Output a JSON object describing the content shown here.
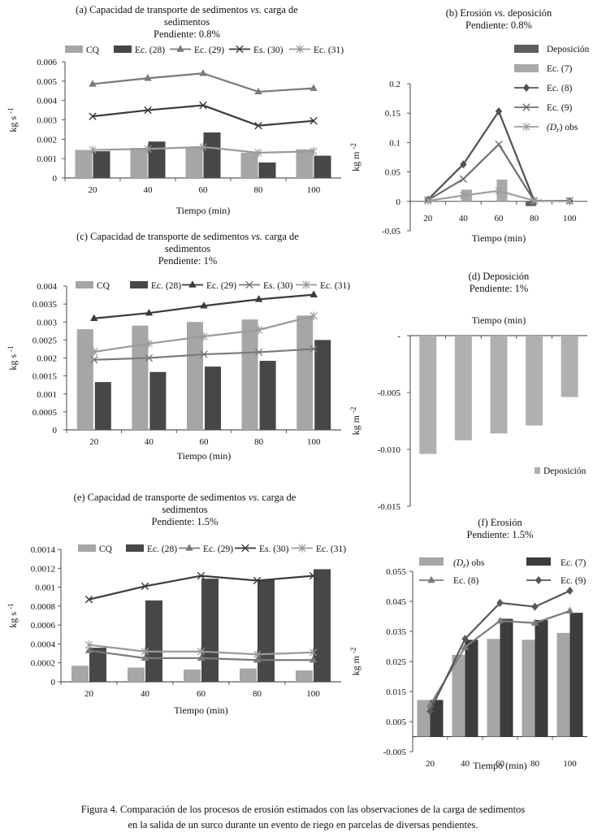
{
  "caption": {
    "line1": "Figura 4. Comparación de los procesos de erosión estimados con las observaciones de la carga de sedimentos",
    "line2": "en la salida de un surco durante un evento de riego en parcelas de diversas pendientes."
  },
  "colors": {
    "cq": "#a6a6a6",
    "ec28": "#474747",
    "ec29": "#7a7a7a",
    "es30": "#3a3a3a",
    "ec31": "#9a9a9a",
    "dep": "#5e5e5e",
    "ec7": "#a9a9a9",
    "ec8": "#505050",
    "ec9": "#6e6e6e",
    "drobs": "#9e9e9e",
    "depd": "#b0b0b0"
  },
  "chart_data": [
    {
      "id": "a",
      "type": "bar+line",
      "title": [
        "(a) Capacidad de transporte de sedimentos vs. carga de",
        "sedimentos",
        "Pendiente: 0.8%"
      ],
      "xlabel": "Tiempo (min)",
      "ylabel": "kg s-1",
      "categories": [
        "20",
        "40",
        "60",
        "80",
        "100"
      ],
      "ylim": [
        0,
        0.006
      ],
      "yticks": [
        "0",
        "0.001",
        "0.002",
        "0.003",
        "0.004",
        "0.005",
        "0.006"
      ],
      "series": [
        {
          "name": "CQ",
          "kind": "bar",
          "values": [
            0.00145,
            0.00155,
            0.0016,
            0.0013,
            0.00148
          ]
        },
        {
          "name": "Ec. (28)",
          "kind": "bar",
          "values": [
            0.00138,
            0.00188,
            0.00235,
            0.0008,
            0.00115
          ]
        },
        {
          "name": "Ec. (29)",
          "kind": "line",
          "marker": "triangle",
          "values": [
            0.00485,
            0.00515,
            0.0054,
            0.00445,
            0.00463
          ]
        },
        {
          "name": "Es. (30)",
          "kind": "line",
          "marker": "x",
          "values": [
            0.00318,
            0.0035,
            0.00375,
            0.0027,
            0.00295
          ]
        },
        {
          "name": "Ec. (31)",
          "kind": "line",
          "marker": "star",
          "values": [
            0.00145,
            0.0015,
            0.0016,
            0.0013,
            0.00138
          ]
        }
      ]
    },
    {
      "id": "b",
      "type": "bar+line",
      "title": [
        "(b) Erosión vs. deposición",
        "Pendiente: 0.8%"
      ],
      "xlabel": "Tiempo (min)",
      "ylabel": "kg m-2",
      "categories": [
        "20",
        "40",
        "60",
        "80",
        "100"
      ],
      "ylim": [
        -0.05,
        0.2
      ],
      "yticks": [
        "-0.05",
        "0",
        "0.05",
        "0.1",
        "0.15",
        "0.2"
      ],
      "series": [
        {
          "name": "Deposición",
          "kind": "bar",
          "values": [
            0,
            0,
            0,
            -0.008,
            0
          ]
        },
        {
          "name": "Ec. (7)",
          "kind": "bar",
          "values": [
            0.002,
            0.02,
            0.037,
            0.003,
            0
          ]
        },
        {
          "name": "Ec. (8)",
          "kind": "line",
          "marker": "diamond",
          "values": [
            0.003,
            0.063,
            0.153,
            0.001,
            0.001
          ]
        },
        {
          "name": "Ec. (9)",
          "kind": "line",
          "marker": "x",
          "values": [
            0.002,
            0.038,
            0.097,
            0.001,
            0.001
          ]
        },
        {
          "name": "(Dr) obs",
          "kind": "line",
          "marker": "star",
          "values": [
            0.001,
            0.01,
            0.018,
            0.001,
            0
          ]
        }
      ]
    },
    {
      "id": "c",
      "type": "bar+line",
      "title": [
        "(c) Capacidad de transporte de sedimentos vs. carga de",
        "sedimentos",
        "Pendiente: 1%"
      ],
      "xlabel": "Tiempo (min)",
      "ylabel": "kg s-1",
      "categories": [
        "20",
        "40",
        "60",
        "80",
        "100"
      ],
      "ylim": [
        0,
        0.004
      ],
      "yticks": [
        "0",
        "0.0005",
        "0.001",
        "0.0015",
        "0.002",
        "0.0025",
        "0.003",
        "0.0035",
        "0.004"
      ],
      "series": [
        {
          "name": "CQ",
          "kind": "bar",
          "values": [
            0.0028,
            0.0029,
            0.003,
            0.00307,
            0.00318
          ]
        },
        {
          "name": "Ec. (28)",
          "kind": "bar",
          "values": [
            0.00133,
            0.00161,
            0.00176,
            0.00192,
            0.0025
          ]
        },
        {
          "name": "Ec. (29)",
          "kind": "line",
          "marker": "triangle",
          "values": [
            0.0031,
            0.00325,
            0.00345,
            0.00363,
            0.00376
          ]
        },
        {
          "name": "Es. (30)",
          "kind": "line",
          "marker": "x",
          "values": [
            0.00195,
            0.002,
            0.0021,
            0.00216,
            0.00225
          ]
        },
        {
          "name": "Ec. (31)",
          "kind": "line",
          "marker": "star",
          "values": [
            0.00217,
            0.0024,
            0.0026,
            0.00278,
            0.00317
          ]
        }
      ]
    },
    {
      "id": "d",
      "type": "bar",
      "title": [
        "(d) Deposición",
        "Pendiente: 1%"
      ],
      "xlabel": "Tiempo (min)",
      "ylabel": "kg m-2",
      "categories": [
        "20",
        "40",
        "60",
        "80",
        "100"
      ],
      "ylim": [
        -0.015,
        0
      ],
      "yticks": [
        "-0.015",
        "-0.010",
        "-0.005",
        "-"
      ],
      "series": [
        {
          "name": "Deposición",
          "kind": "bar",
          "values": [
            -0.0104,
            -0.0092,
            -0.0086,
            -0.0079,
            -0.0054
          ]
        }
      ]
    },
    {
      "id": "e",
      "type": "bar+line",
      "title": [
        "(e) Capacidad de transporte de sedimentos vs. carga de",
        "sedimentos",
        "Pendiente: 1.5%"
      ],
      "xlabel": "Tiempo (min)",
      "ylabel": "kg s-1",
      "categories": [
        "20",
        "40",
        "60",
        "80",
        "100"
      ],
      "ylim": [
        0,
        0.0014
      ],
      "yticks": [
        "0",
        "0.0002",
        "0.0004",
        "0.0006",
        "0.0008",
        "0.001",
        "0.0012",
        "0.0014"
      ],
      "series": [
        {
          "name": "CQ",
          "kind": "bar",
          "values": [
            0.00017,
            0.00015,
            0.00013,
            0.00014,
            0.00012
          ]
        },
        {
          "name": "Ec. (28)",
          "kind": "bar",
          "values": [
            0.00036,
            0.00086,
            0.00109,
            0.00108,
            0.00119
          ]
        },
        {
          "name": "Ec. (29)",
          "kind": "line",
          "marker": "triangle",
          "values": [
            0.00033,
            0.00025,
            0.00025,
            0.00023,
            0.00023
          ]
        },
        {
          "name": "Es. (30)",
          "kind": "line",
          "marker": "x",
          "values": [
            0.00087,
            0.00101,
            0.00112,
            0.00107,
            0.00112
          ]
        },
        {
          "name": "Ec. (31)",
          "kind": "line",
          "marker": "star",
          "values": [
            0.00039,
            0.00032,
            0.00032,
            0.00029,
            0.00031
          ]
        }
      ]
    },
    {
      "id": "f",
      "type": "bar+line",
      "title": [
        "(f) Erosión",
        "Pendiente: 1.5%"
      ],
      "xlabel": "Tiempo (min)",
      "ylabel": "kg m-2",
      "categories": [
        "20",
        "40",
        "60",
        "80",
        "100"
      ],
      "ylim": [
        -0.005,
        0.055
      ],
      "yticks": [
        "-0.005",
        "0.005",
        "0.015",
        "0.025",
        "0.035",
        "0.045",
        "0.055"
      ],
      "series": [
        {
          "name": "(Dr) obs",
          "kind": "bar",
          "values": [
            0.0122,
            0.0272,
            0.0325,
            0.0322,
            0.0345
          ]
        },
        {
          "name": "Ec. (7)",
          "kind": "bar",
          "values": [
            0.0122,
            0.0322,
            0.0392,
            0.0388,
            0.0412
          ]
        },
        {
          "name": "Ec. (8)",
          "kind": "line",
          "marker": "triangle",
          "values": [
            0.0105,
            0.0298,
            0.0385,
            0.0378,
            0.0418
          ]
        },
        {
          "name": "Ec. (9)",
          "kind": "line",
          "marker": "diamond",
          "values": [
            0.0085,
            0.0325,
            0.0445,
            0.0432,
            0.0485
          ]
        }
      ]
    }
  ]
}
